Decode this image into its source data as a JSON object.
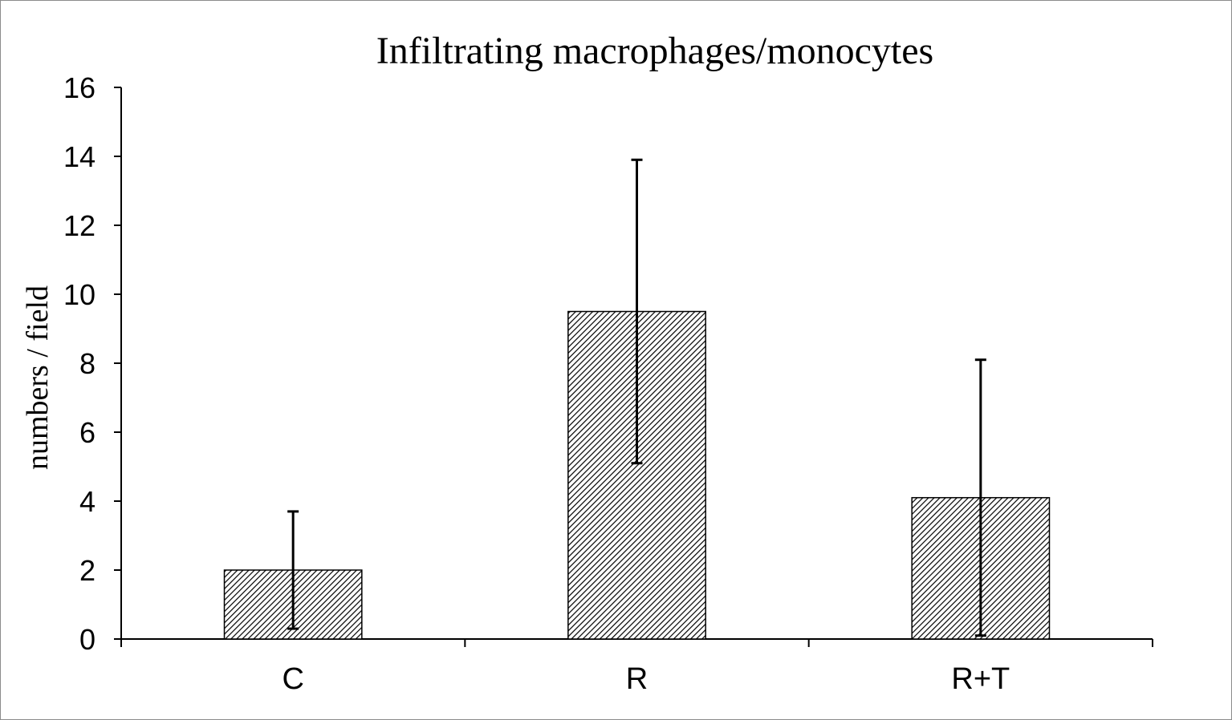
{
  "chart_data": {
    "type": "bar",
    "title": "Infiltrating macrophages/monocytes",
    "xlabel": "",
    "ylabel": "numbers / field",
    "categories": [
      "C",
      "R",
      "R+T"
    ],
    "values": [
      2.0,
      9.5,
      4.1
    ],
    "error_bars": [
      1.7,
      4.4,
      4.0
    ],
    "ylim": [
      0,
      16
    ],
    "yticks": [
      0,
      2,
      4,
      6,
      8,
      10,
      12,
      14,
      16
    ],
    "bar_fill": "diagonal hatch",
    "bar_color": "#000000",
    "grid": false,
    "legend": "none"
  }
}
